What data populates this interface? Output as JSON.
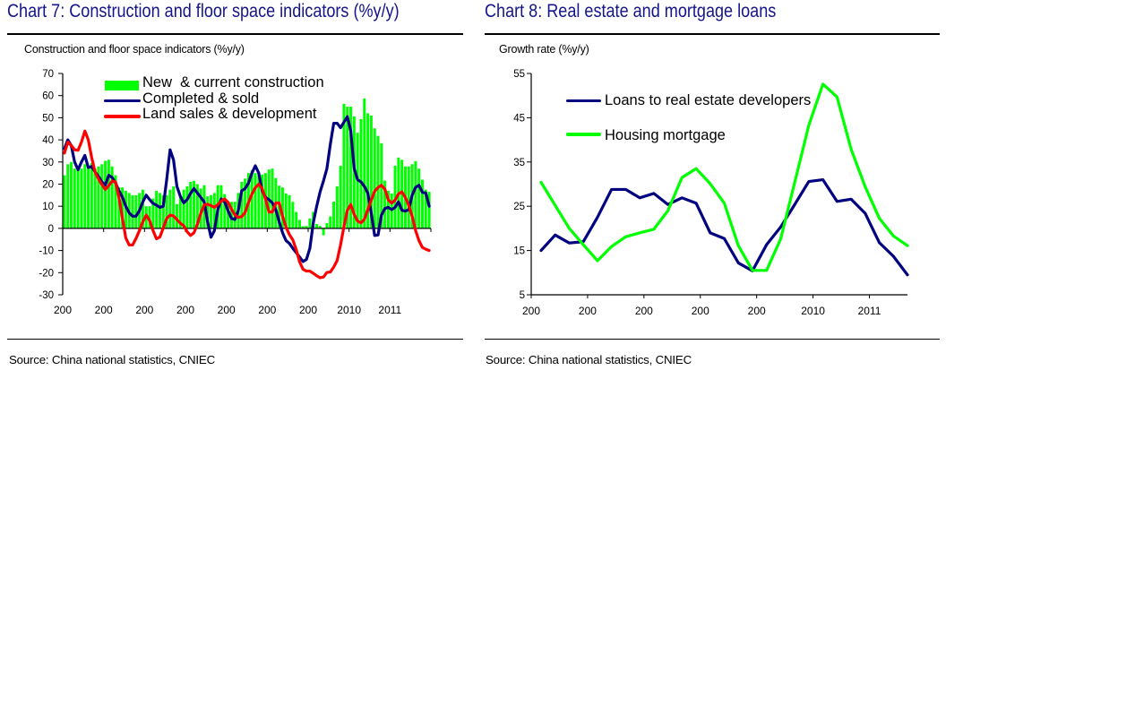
{
  "panels": [
    {
      "heading": "Chart 7: Construction and floor space indicators (%y/y)",
      "source": "Source: China national statistics, CNIEC"
    },
    {
      "heading": "Chart 8: Real estate and mortgage loans",
      "source": "Source: China national statistics, CNIEC"
    }
  ],
  "colors": {
    "heading": "#14148c",
    "rule": "#000000",
    "green": "#00ff00",
    "navy": "#000080",
    "red": "#ff0000"
  },
  "chart_data": [
    {
      "type": "bar+line",
      "title": "Construction and floor space indicators (%y/y)",
      "xlabel": "",
      "ylabel": "",
      "x_unit": "month index",
      "xlim": [
        0,
        108
      ],
      "x_start": 0.5,
      "x_step": 1,
      "xticks": [
        0,
        12,
        24,
        36,
        48,
        60,
        72,
        84,
        96,
        108
      ],
      "xtick_label_positions": [
        0,
        12,
        24,
        36,
        48,
        60,
        72,
        84,
        96
      ],
      "xtick_labels": [
        "200",
        "200",
        "200",
        "200",
        "200",
        "200",
        "200",
        "2010",
        "2011"
      ],
      "ylim": [
        -30,
        70
      ],
      "yticks": [
        70,
        60,
        50,
        40,
        30,
        20,
        10,
        0,
        -10,
        -20,
        -30
      ],
      "ytick_labels": [
        "70",
        "60",
        "50",
        "40",
        "30",
        "20",
        "10",
        "0",
        "-10",
        "-20",
        "-30"
      ],
      "grid": false,
      "legend_position": "top-left",
      "series": [
        {
          "name": "New  & current construction",
          "type": "bar",
          "color": "#00ff00",
          "values": [
            24,
            29,
            30,
            27,
            27,
            27,
            29,
            28,
            29.5,
            27,
            28,
            29,
            30.5,
            31,
            28,
            24,
            18.5,
            18.5,
            17,
            16,
            15,
            15,
            16,
            17.5,
            10,
            10,
            13.5,
            17,
            16,
            15,
            15,
            17.5,
            19,
            11,
            14,
            17.5,
            19,
            21,
            21.5,
            20,
            18,
            19.5,
            14.5,
            15,
            16,
            19.5,
            19.5,
            15.5,
            12,
            12,
            12,
            16,
            21,
            22.5,
            25,
            26.3,
            25,
            24,
            24.3,
            25,
            26.6,
            27,
            22.7,
            19.3,
            18.5,
            15.8,
            15,
            12,
            7.4,
            3.8,
            1,
            1.1,
            4.5,
            7.4,
            2,
            1.1,
            -3.1,
            2.4,
            5.4,
            12.1,
            19,
            28.3,
            56.3,
            55,
            55,
            50.6,
            43.2,
            49.4,
            58.7,
            52,
            51,
            45.2,
            41.8,
            38.5,
            21.6,
            17,
            15.8,
            28.3,
            32,
            31,
            28,
            28,
            29,
            30.4,
            27,
            22,
            17.5,
            16.5
          ]
        },
        {
          "name": "Completed & sold",
          "type": "line",
          "color": "#000080",
          "values": [
            36,
            40,
            37.5,
            30,
            26.5,
            30,
            33,
            27.5,
            28,
            25.5,
            23.5,
            21,
            19.6,
            24,
            23,
            20.5,
            17,
            14.2,
            10,
            7,
            5.5,
            5.5,
            8,
            12,
            15,
            13,
            11.3,
            10.5,
            9.5,
            10,
            22,
            35.5,
            31,
            19,
            14.5,
            11.5,
            13,
            15.8,
            18,
            16,
            14,
            12,
            3,
            -4,
            -1,
            8.5,
            13.3,
            12,
            8,
            4.5,
            4,
            8,
            17,
            18,
            20.5,
            25,
            28.3,
            25,
            17,
            14,
            13,
            11.5,
            8.5,
            3,
            -2,
            -5.5,
            -6.8,
            -9,
            -11,
            -13,
            -15,
            -14,
            -9,
            2.5,
            10,
            16.5,
            21.5,
            27,
            38,
            47.5,
            47.5,
            45.5,
            48,
            50.5,
            44,
            27,
            22,
            21,
            19,
            16,
            7,
            -3.2,
            -3,
            6,
            9,
            9.5,
            8.5,
            9.5,
            12,
            8.2,
            7.8,
            8.5,
            15,
            18.5,
            19.5,
            16.3,
            16,
            10
          ]
        },
        {
          "name": "Land sales & development",
          "type": "line",
          "color": "#ff0000",
          "values": [
            34,
            39,
            37.5,
            35.5,
            35.3,
            39,
            44,
            40,
            32,
            25.5,
            22.3,
            19.8,
            17.6,
            19.3,
            21.4,
            21,
            14,
            4.7,
            -4.3,
            -7.5,
            -7.5,
            -4.6,
            -1,
            3,
            6,
            3.5,
            -1,
            -4.7,
            -3.9,
            0.2,
            4.5,
            6,
            5.6,
            4,
            2.3,
            1.2,
            -1.5,
            -3.2,
            -2,
            1.9,
            6.8,
            10.6,
            10.9,
            10.3,
            9.5,
            10.8,
            12.3,
            13.3,
            11.8,
            8.7,
            6.1,
            5,
            5.3,
            7.2,
            11.7,
            15.5,
            18.4,
            20,
            18,
            13.2,
            7.4,
            7.4,
            11.5,
            11.5,
            5.4,
            0.6,
            -2.8,
            -5.2,
            -9.6,
            -15.2,
            -18.5,
            -19.3,
            -19.3,
            -20.3,
            -21.4,
            -22.3,
            -22,
            -19.9,
            -19.7,
            -17.5,
            -14.5,
            -7.5,
            0.9,
            8.2,
            10.8,
            6.3,
            3.3,
            2.5,
            4.1,
            8.5,
            12.7,
            16.8,
            18.5,
            19.5,
            17.7,
            12.9,
            11.4,
            12.8,
            15.6,
            16.5,
            14,
            10.4,
            5.5,
            -0.9,
            -5.5,
            -8.6,
            -9.4,
            -10
          ]
        }
      ]
    },
    {
      "type": "line",
      "title": "Growth rate (%y/y)",
      "xlabel": "",
      "ylabel": "",
      "x_unit": "quarter index",
      "xlim": [
        -0.7,
        26
      ],
      "x_start": 0,
      "x_step": 1,
      "xticks": [
        -0.7,
        3.3,
        7.3,
        11.3,
        15.3,
        19.3,
        23.3
      ],
      "xtick_label_positions": [
        -0.7,
        3.3,
        7.3,
        11.3,
        15.3,
        19.3,
        23.3
      ],
      "xtick_labels": [
        "200",
        "200",
        "200",
        "200",
        "200",
        "2010",
        "2011"
      ],
      "ylim": [
        5,
        55
      ],
      "yticks": [
        55,
        45,
        35,
        25,
        15,
        5
      ],
      "ytick_labels": [
        "55",
        "45",
        "35",
        "25",
        "15",
        "5"
      ],
      "grid": false,
      "legend_position": "top-left",
      "series": [
        {
          "name": "Loans to real estate developers",
          "type": "line",
          "color": "#000080",
          "values": [
            15,
            18.5,
            16.7,
            17,
            22.5,
            28.8,
            28.8,
            26.9,
            27.9,
            25.4,
            26.9,
            25.7,
            19,
            17.7,
            12.2,
            10.4,
            16.3,
            20.3,
            25.4,
            30.6,
            31,
            26.1,
            26.6,
            23.4,
            16.8,
            13.7,
            9.5
          ]
        },
        {
          "name": "Housing mortgage",
          "type": "line",
          "color": "#00ff00",
          "values": [
            30.4,
            25.2,
            20,
            16.3,
            12.7,
            15.9,
            18.1,
            19,
            19.8,
            24,
            31.5,
            33.5,
            30.1,
            25.7,
            16.1,
            10.5,
            10.5,
            17.6,
            30.4,
            43.3,
            52.6,
            49.7,
            37.9,
            29.4,
            22.3,
            18.3,
            16.1
          ]
        }
      ]
    }
  ]
}
